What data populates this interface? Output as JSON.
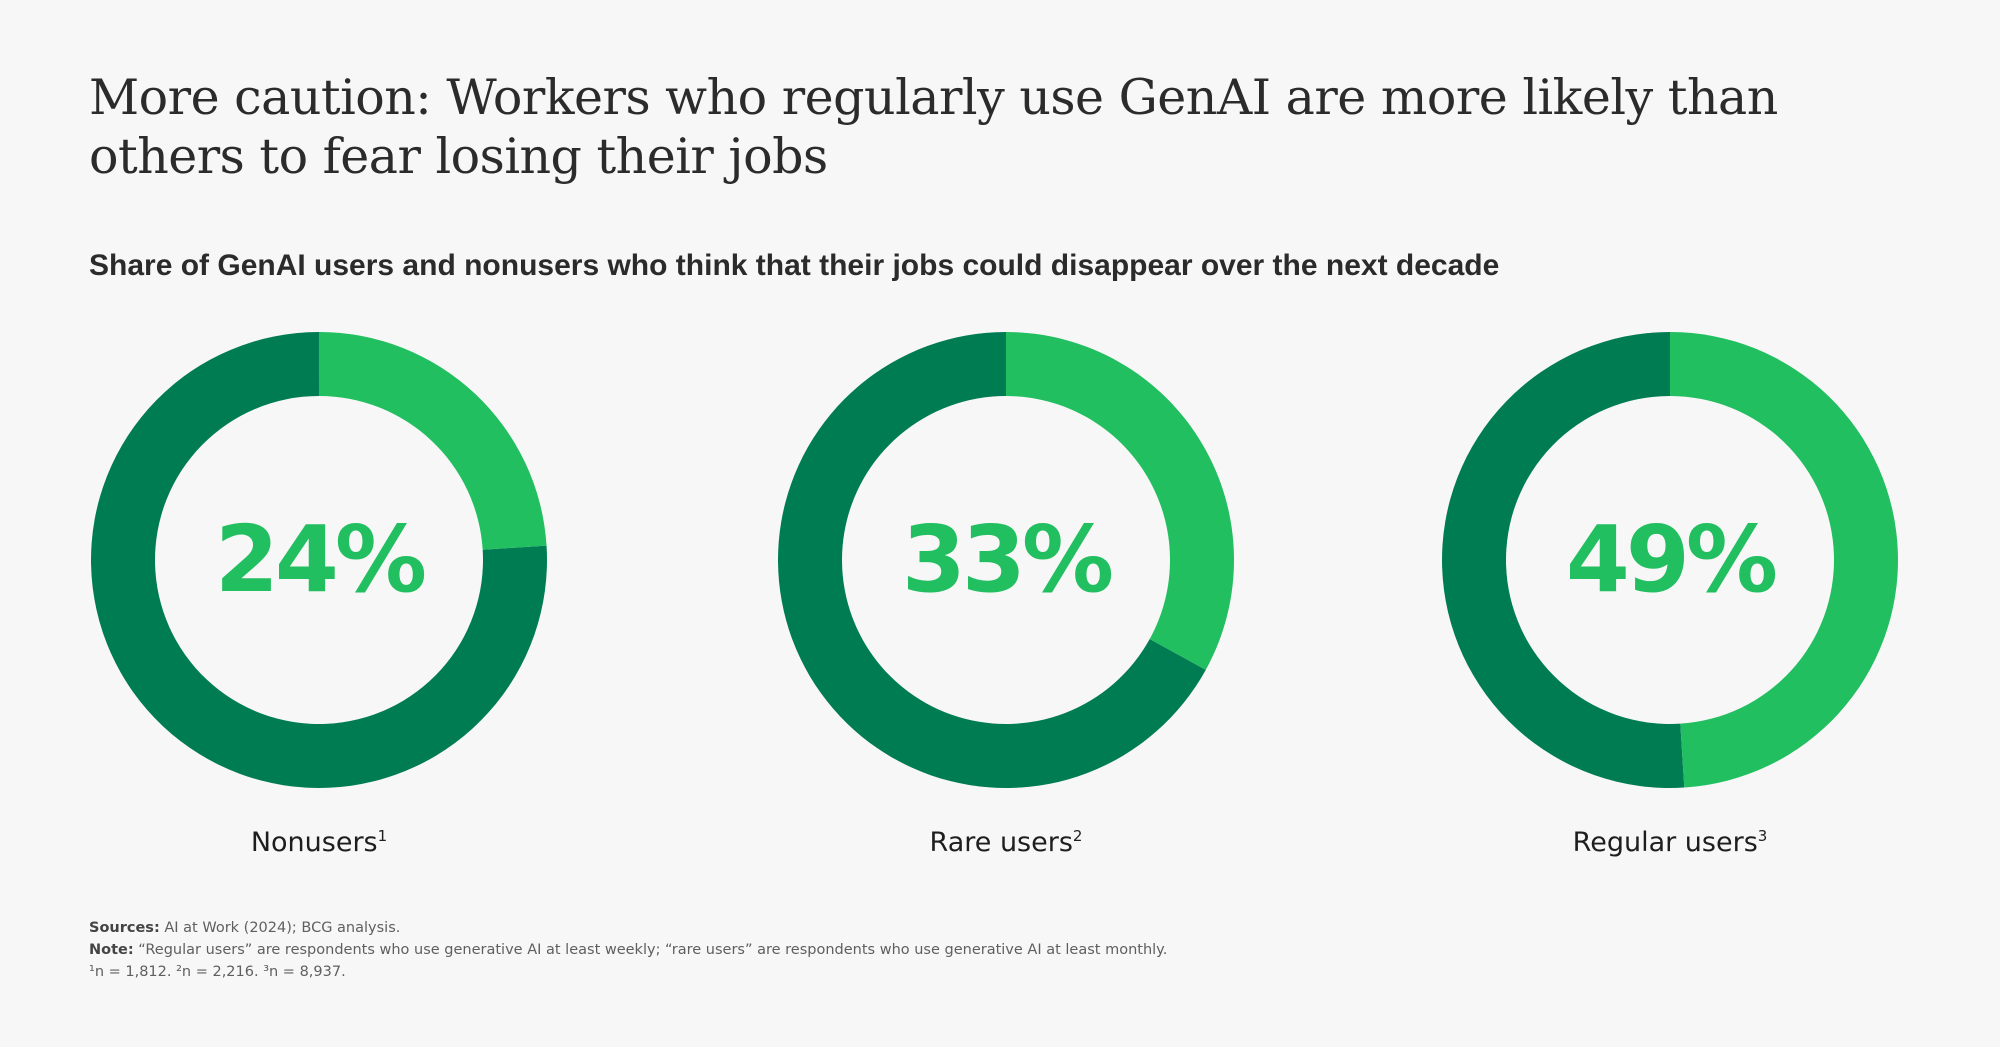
{
  "title": "More caution: Workers who regularly use GenAI are more likely than others to fear losing their jobs",
  "colors": {
    "highlight": "#22bf61",
    "rest": "#007c53",
    "background": "#f7f7f7"
  },
  "chart_data": {
    "type": "pie",
    "subtitle": "Share of GenAI users and nonusers who think that their jobs could disappear over the next decade",
    "items": [
      {
        "category": "Nonusers",
        "footnote": "1",
        "value": 24,
        "label": "24%"
      },
      {
        "category": "Rare users",
        "footnote": "2",
        "value": 33,
        "label": "33%"
      },
      {
        "category": "Regular users",
        "footnote": "3",
        "value": 49,
        "label": "49%"
      }
    ]
  },
  "footer": {
    "sources_label": "Sources:",
    "sources_text": " AI at Work (2024); BCG analysis.",
    "note_label": "Note:",
    "note_text": " “Regular users” are respondents who use generative AI at least weekly; “rare users” are respondents who use generative AI at least monthly.",
    "sample_sizes": "¹n = 1,812. ²n = 2,216. ³n = 8,937."
  }
}
